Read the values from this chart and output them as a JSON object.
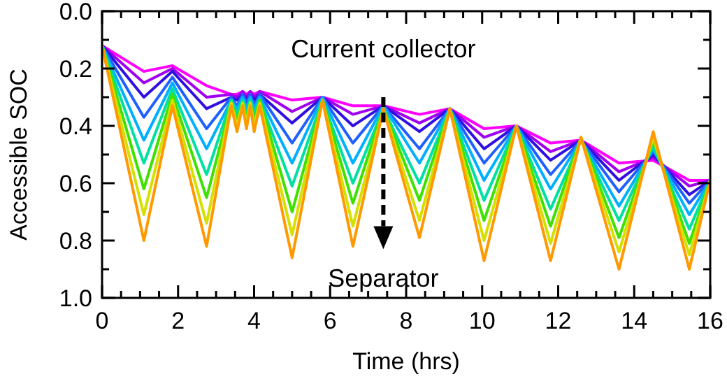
{
  "chart_data": {
    "type": "line",
    "xlabel": "Time (hrs)",
    "ylabel": "Accessible SOC",
    "annotations": [
      "Current collector",
      "Separator"
    ],
    "x": [
      0,
      1.1,
      1.85,
      2.75,
      3.4,
      3.55,
      3.7,
      3.8,
      3.9,
      4.0,
      4.15,
      5.0,
      5.8,
      6.6,
      7.4,
      8.35,
      9.15,
      10.05,
      10.9,
      11.8,
      12.6,
      13.6,
      14.5,
      15.45,
      16
    ],
    "xlim": [
      0,
      16
    ],
    "ylim": [
      1.0,
      0.0
    ],
    "xticks": [
      0,
      {
        "value": 0.5,
        "label": null
      },
      {
        "value": 1,
        "label": null
      },
      {
        "value": 1.5,
        "label": null
      },
      2,
      {
        "value": 2.5,
        "label": null
      },
      {
        "value": 3,
        "label": null
      },
      {
        "value": 3.5,
        "label": null
      },
      4,
      {
        "value": 4.5,
        "label": null
      },
      {
        "value": 5,
        "label": null
      },
      {
        "value": 5.5,
        "label": null
      },
      6,
      {
        "value": 6.5,
        "label": null
      },
      {
        "value": 7,
        "label": null
      },
      {
        "value": 7.5,
        "label": null
      },
      8,
      {
        "value": 8.5,
        "label": null
      },
      {
        "value": 9,
        "label": null
      },
      {
        "value": 9.5,
        "label": null
      },
      10,
      {
        "value": 10.5,
        "label": null
      },
      {
        "value": 11,
        "label": null
      },
      {
        "value": 11.5,
        "label": null
      },
      12,
      {
        "value": 12.5,
        "label": null
      },
      {
        "value": 13,
        "label": null
      },
      {
        "value": 13.5,
        "label": null
      },
      14,
      {
        "value": 14.5,
        "label": null
      },
      {
        "value": 15,
        "label": null
      },
      {
        "value": 15.5,
        "label": null
      },
      16
    ],
    "yticks": [
      {
        "value": 0,
        "label": "0.0"
      },
      {
        "value": 0.1,
        "label": null
      },
      {
        "value": 0.2,
        "label": "0.2"
      },
      {
        "value": 0.3,
        "label": null
      },
      {
        "value": 0.4,
        "label": "0.4"
      },
      {
        "value": 0.5,
        "label": null
      },
      {
        "value": 0.6,
        "label": "0.6"
      },
      {
        "value": 0.7,
        "label": null
      },
      {
        "value": 0.8,
        "label": "0.8"
      },
      {
        "value": 0.9,
        "label": null
      },
      {
        "value": 1.0,
        "label": "1.0"
      }
    ],
    "grid": false,
    "marker": "none",
    "line_style": "solid",
    "series": [
      {
        "color": "#ff00ff",
        "values": [
          0.12,
          0.21,
          0.19,
          0.26,
          0.29,
          0.29,
          0.28,
          0.29,
          0.28,
          0.29,
          0.28,
          0.31,
          0.3,
          0.33,
          0.33,
          0.36,
          0.34,
          0.41,
          0.4,
          0.46,
          0.45,
          0.53,
          0.52,
          0.59,
          0.59
        ]
      },
      {
        "color": "#a000f0",
        "values": [
          0.12,
          0.25,
          0.2,
          0.3,
          0.29,
          0.3,
          0.28,
          0.3,
          0.28,
          0.3,
          0.28,
          0.35,
          0.3,
          0.36,
          0.33,
          0.39,
          0.34,
          0.44,
          0.4,
          0.49,
          0.45,
          0.56,
          0.51,
          0.61,
          0.59
        ]
      },
      {
        "color": "#3010e0",
        "values": [
          0.12,
          0.3,
          0.21,
          0.34,
          0.3,
          0.31,
          0.29,
          0.31,
          0.29,
          0.31,
          0.29,
          0.39,
          0.3,
          0.4,
          0.33,
          0.42,
          0.34,
          0.48,
          0.4,
          0.52,
          0.45,
          0.59,
          0.5,
          0.64,
          0.59
        ]
      },
      {
        "color": "#2060ff",
        "values": [
          0.12,
          0.37,
          0.23,
          0.41,
          0.3,
          0.33,
          0.29,
          0.32,
          0.29,
          0.33,
          0.29,
          0.46,
          0.3,
          0.46,
          0.33,
          0.48,
          0.34,
          0.53,
          0.4,
          0.57,
          0.45,
          0.63,
          0.49,
          0.67,
          0.59
        ]
      },
      {
        "color": "#00b0ff",
        "values": [
          0.12,
          0.45,
          0.25,
          0.48,
          0.31,
          0.34,
          0.3,
          0.34,
          0.3,
          0.34,
          0.3,
          0.53,
          0.3,
          0.53,
          0.33,
          0.53,
          0.34,
          0.59,
          0.4,
          0.62,
          0.45,
          0.68,
          0.48,
          0.71,
          0.59
        ]
      },
      {
        "color": "#00e0a0",
        "values": [
          0.12,
          0.53,
          0.27,
          0.57,
          0.31,
          0.36,
          0.31,
          0.36,
          0.31,
          0.36,
          0.31,
          0.61,
          0.31,
          0.6,
          0.34,
          0.6,
          0.34,
          0.66,
          0.4,
          0.69,
          0.45,
          0.73,
          0.47,
          0.76,
          0.59
        ]
      },
      {
        "color": "#40e000",
        "values": [
          0.12,
          0.62,
          0.29,
          0.65,
          0.32,
          0.38,
          0.32,
          0.37,
          0.32,
          0.38,
          0.31,
          0.7,
          0.31,
          0.67,
          0.34,
          0.66,
          0.34,
          0.73,
          0.4,
          0.75,
          0.44,
          0.79,
          0.45,
          0.81,
          0.59
        ]
      },
      {
        "color": "#d4e000",
        "values": [
          0.12,
          0.71,
          0.31,
          0.74,
          0.32,
          0.4,
          0.32,
          0.39,
          0.32,
          0.4,
          0.32,
          0.78,
          0.31,
          0.75,
          0.34,
          0.73,
          0.34,
          0.8,
          0.4,
          0.81,
          0.44,
          0.84,
          0.44,
          0.85,
          0.59
        ]
      },
      {
        "color": "#ff9900",
        "values": [
          0.12,
          0.8,
          0.33,
          0.82,
          0.33,
          0.42,
          0.33,
          0.41,
          0.33,
          0.42,
          0.33,
          0.86,
          0.31,
          0.82,
          0.34,
          0.79,
          0.34,
          0.87,
          0.4,
          0.87,
          0.44,
          0.9,
          0.42,
          0.9,
          0.59
        ]
      }
    ]
  }
}
